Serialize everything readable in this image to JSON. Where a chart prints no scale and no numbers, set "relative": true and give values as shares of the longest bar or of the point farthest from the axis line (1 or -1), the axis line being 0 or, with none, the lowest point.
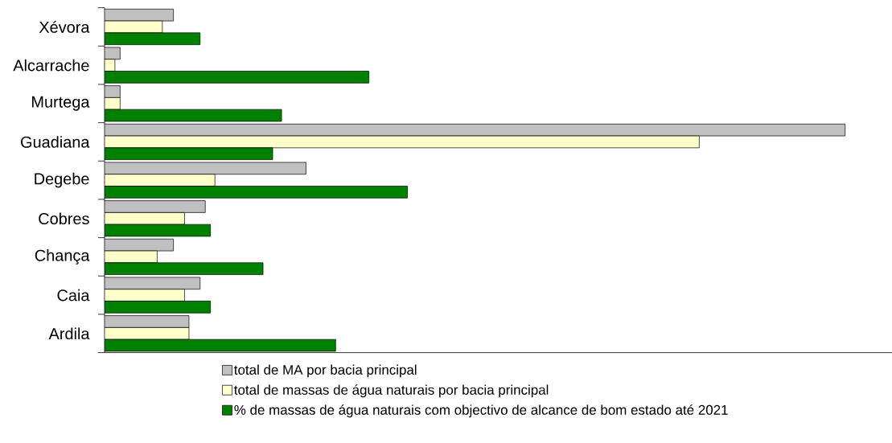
{
  "chart_data": {
    "type": "bar",
    "orientation": "horizontal",
    "relative": true,
    "categories": [
      "Xévora",
      "Alcarrache",
      "Murtega",
      "Guadiana",
      "Degebe",
      "Cobres",
      "Chança",
      "Caia",
      "Ardila"
    ],
    "series": [
      {
        "name": "total de MA por bacia principal",
        "color": "#c0c0c0",
        "values": [
          0.093,
          0.021,
          0.021,
          1,
          0.272,
          0.136,
          0.093,
          0.129,
          0.114
        ]
      },
      {
        "name": "total de massas de água naturais por bacia principal",
        "color": "#ffffcc",
        "values": [
          0.078,
          0.014,
          0.021,
          0.803,
          0.149,
          0.108,
          0.071,
          0.108,
          0.114
        ]
      },
      {
        "name": "% de massas de água naturais com objectivo de alcance de bom estado até 2021",
        "color": "#008000",
        "values": [
          0.129,
          0.357,
          0.239,
          0.227,
          0.409,
          0.143,
          0.214,
          0.143,
          0.312
        ]
      }
    ],
    "legend": "bottom"
  }
}
